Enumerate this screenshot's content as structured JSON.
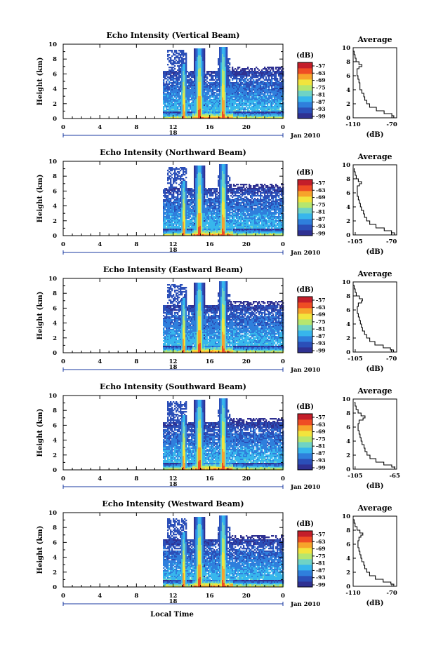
{
  "figure": {
    "xlabel": "Local Time",
    "month_label": "Jan 2010",
    "day_label": "18",
    "colorbar_unit": "(dB)",
    "colorbar_ticks": [
      "-57",
      "-63",
      "-69",
      "-75",
      "-81",
      "-87",
      "-93",
      "-99"
    ],
    "colorbar_colors": [
      "#2f3192",
      "#2b4fb8",
      "#2f7fdc",
      "#37b6ec",
      "#6fd3c5",
      "#b6e66e",
      "#f2e43d",
      "#f7a42b",
      "#ef4d24",
      "#c41e2a"
    ],
    "blank_color": "#ffffff"
  },
  "chart_data": [
    {
      "type": "heatmap",
      "title": "Echo Intensity (Vertical Beam)",
      "ylabel": "Height (km)",
      "x_ticks": [
        "0",
        "4",
        "8",
        "12",
        "16",
        "20",
        "0"
      ],
      "y_ticks": [
        "0",
        "2",
        "4",
        "6",
        "8",
        "10"
      ],
      "xlim": [
        0,
        24
      ],
      "ylim": [
        0,
        10
      ],
      "average": {
        "title": "Average",
        "xlabel": "(dB)",
        "x_ticks": [
          "-110",
          "-70"
        ],
        "xlim": [
          -110,
          -65
        ],
        "height_km": [
          0,
          0.3,
          0.6,
          1,
          1.5,
          2,
          2.5,
          3,
          3.5,
          4,
          4.5,
          5,
          5.5,
          6,
          6.5,
          7,
          7.3,
          7.6,
          8,
          8.5,
          9,
          9.5
        ],
        "db": [
          -68,
          -70,
          -78,
          -86,
          -93,
          -96,
          -98,
          -99,
          -101,
          -103,
          -103,
          -104,
          -105,
          -106,
          -106,
          -104,
          -101,
          -104,
          -107,
          -108,
          -109,
          -110
        ]
      }
    },
    {
      "type": "heatmap",
      "title": "Echo Intensity (Northward Beam)",
      "ylabel": "Height (km)",
      "x_ticks": [
        "0",
        "4",
        "8",
        "12",
        "16",
        "20",
        "0"
      ],
      "y_ticks": [
        "0",
        "2",
        "4",
        "6",
        "8",
        "10"
      ],
      "xlim": [
        0,
        24
      ],
      "ylim": [
        0,
        10
      ],
      "average": {
        "title": "Average",
        "xlabel": "(dB)",
        "x_ticks": [
          "-105",
          "-70"
        ],
        "xlim": [
          -107,
          -65
        ],
        "height_km": [
          0,
          0.3,
          0.6,
          1,
          1.5,
          2,
          2.5,
          3,
          3.5,
          4,
          4.5,
          5,
          5.5,
          6,
          6.5,
          7,
          7.3,
          7.6,
          8,
          8.5,
          9,
          9.5
        ],
        "db": [
          -67,
          -70,
          -77,
          -85,
          -91,
          -94,
          -96,
          -97,
          -99,
          -100,
          -101,
          -102,
          -103,
          -103,
          -103,
          -101,
          -99,
          -102,
          -104,
          -105,
          -106,
          -106
        ]
      }
    },
    {
      "type": "heatmap",
      "title": "Echo Intensity (Eastward Beam)",
      "ylabel": "Height (km)",
      "x_ticks": [
        "0",
        "4",
        "8",
        "12",
        "16",
        "20",
        "0"
      ],
      "y_ticks": [
        "0",
        "2",
        "4",
        "6",
        "8",
        "10"
      ],
      "xlim": [
        0,
        24
      ],
      "ylim": [
        0,
        10
      ],
      "average": {
        "title": "Average",
        "xlabel": "(dB)",
        "x_ticks": [
          "-105",
          "-70"
        ],
        "xlim": [
          -107,
          -65
        ],
        "height_km": [
          0,
          0.3,
          0.6,
          1,
          1.5,
          2,
          2.5,
          3,
          3.5,
          4,
          4.5,
          5,
          5.5,
          6,
          6.5,
          7,
          7.3,
          7.6,
          8,
          8.5,
          9,
          9.5
        ],
        "db": [
          -68,
          -71,
          -78,
          -86,
          -91,
          -94,
          -96,
          -98,
          -99,
          -100,
          -101,
          -102,
          -103,
          -103,
          -102,
          -99,
          -98,
          -101,
          -104,
          -105,
          -106,
          -107
        ]
      }
    },
    {
      "type": "heatmap",
      "title": "Echo Intensity (Southward Beam)",
      "ylabel": "Height (km)",
      "x_ticks": [
        "0",
        "4",
        "8",
        "12",
        "16",
        "20",
        "0"
      ],
      "y_ticks": [
        "0",
        "2",
        "4",
        "6",
        "8",
        "10"
      ],
      "xlim": [
        0,
        24
      ],
      "ylim": [
        0,
        10
      ],
      "average": {
        "title": "Average",
        "xlabel": "(dB)",
        "x_ticks": [
          "-105",
          "-65"
        ],
        "xlim": [
          -107,
          -63
        ],
        "height_km": [
          0,
          0.3,
          0.6,
          1,
          1.5,
          2,
          2.5,
          3,
          3.5,
          4,
          4.5,
          5,
          5.5,
          6,
          6.5,
          7,
          7.3,
          7.6,
          8,
          8.5,
          9,
          9.5
        ],
        "db": [
          -65,
          -68,
          -76,
          -84,
          -90,
          -93,
          -95,
          -96,
          -98,
          -99,
          -100,
          -101,
          -102,
          -102,
          -101,
          -97,
          -95,
          -99,
          -102,
          -104,
          -105,
          -106
        ]
      }
    },
    {
      "type": "heatmap",
      "title": "Echo Intensity (Westward Beam)",
      "ylabel": "Height (km)",
      "x_ticks": [
        "0",
        "4",
        "8",
        "12",
        "16",
        "20",
        "0"
      ],
      "y_ticks": [
        "0",
        "2",
        "4",
        "6",
        "8",
        "10"
      ],
      "xlim": [
        0,
        24
      ],
      "ylim": [
        0,
        10
      ],
      "average": {
        "title": "Average",
        "xlabel": "(dB)",
        "x_ticks": [
          "-110",
          "-70"
        ],
        "xlim": [
          -110,
          -65
        ],
        "height_km": [
          0,
          0.3,
          0.6,
          1,
          1.5,
          2,
          2.5,
          3,
          3.5,
          4,
          4.5,
          5,
          5.5,
          6,
          6.5,
          7,
          7.3,
          7.6,
          8,
          8.5,
          9,
          9.5
        ],
        "db": [
          -68,
          -71,
          -79,
          -87,
          -93,
          -96,
          -98,
          -99,
          -101,
          -102,
          -103,
          -104,
          -105,
          -105,
          -104,
          -102,
          -100,
          -103,
          -106,
          -108,
          -109,
          -110
        ]
      }
    }
  ]
}
